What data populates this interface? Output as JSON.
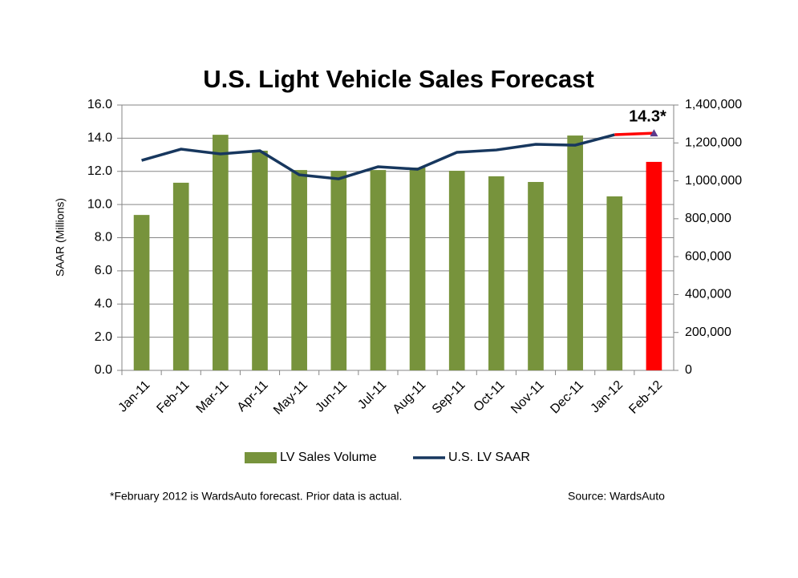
{
  "chart_data": {
    "type": "combo",
    "title": "U.S. Light Vehicle Sales Forecast",
    "y_label": "SAAR (Millions)",
    "categories": [
      "Jan-11",
      "Feb-11",
      "Mar-11",
      "Apr-11",
      "May-11",
      "Jun-11",
      "Jul-11",
      "Aug-11",
      "Sep-11",
      "Oct-11",
      "Nov-11",
      "Dec-11",
      "Jan-12",
      "Feb-12"
    ],
    "series": [
      {
        "name": "LV Sales Volume",
        "type": "bar",
        "axis": "y2",
        "color": "#77933c",
        "colors": [
          "#77933c",
          "#77933c",
          "#77933c",
          "#77933c",
          "#77933c",
          "#77933c",
          "#77933c",
          "#77933c",
          "#77933c",
          "#77933c",
          "#77933c",
          "#77933c",
          "#77933c",
          "#ff0000"
        ],
        "values": [
          820000,
          990000,
          1243000,
          1159000,
          1057000,
          1053000,
          1057000,
          1070000,
          1053000,
          1024000,
          994000,
          1239000,
          918000,
          1100000
        ]
      },
      {
        "name": "U.S. LV SAAR",
        "type": "line",
        "color": "#17375e",
        "point_colors": [
          "#17375e",
          "#17375e",
          "#17375e",
          "#17375e",
          "#17375e",
          "#17375e",
          "#17375e",
          "#17375e",
          "#17375e",
          "#17375e",
          "#17375e",
          "#17375e",
          "#17375e",
          "#ff0000"
        ],
        "values": [
          12.66,
          13.34,
          13.05,
          13.24,
          11.79,
          11.55,
          12.28,
          12.13,
          13.15,
          13.29,
          13.63,
          13.58,
          14.21,
          14.3
        ],
        "value_labels": [
          null,
          null,
          null,
          null,
          null,
          null,
          null,
          null,
          null,
          null,
          null,
          null,
          null,
          "14.3*"
        ]
      }
    ],
    "ylim": [
      0,
      16
    ],
    "yticks": [
      {
        "value": 0,
        "label": "0.0"
      },
      {
        "value": 2,
        "label": "2.0"
      },
      {
        "value": 4,
        "label": "4.0"
      },
      {
        "value": 6,
        "label": "6.0"
      },
      {
        "value": 8,
        "label": "8.0"
      },
      {
        "value": 10,
        "label": "10.0"
      },
      {
        "value": 12,
        "label": "12.0"
      },
      {
        "value": 14,
        "label": "14.0"
      },
      {
        "value": 16,
        "label": "16.0"
      }
    ],
    "y2lim": [
      0,
      1400000
    ],
    "y2ticks": [
      0,
      {
        "value": 200000,
        "label": "200,000"
      },
      {
        "value": 400000,
        "label": "400,000"
      },
      {
        "value": 600000,
        "label": "600,000"
      },
      {
        "value": 800000,
        "label": "800,000"
      },
      {
        "value": 1000000,
        "label": "1,000,000"
      },
      {
        "value": 1200000,
        "label": "1,200,000"
      },
      {
        "value": 1400000,
        "label": "1,400,000"
      }
    ],
    "grid": true,
    "legend": "bottom",
    "footnote": "*February 2012 is WardsAuto forecast. Prior data is actual.",
    "source": "Source: WardsAuto"
  }
}
